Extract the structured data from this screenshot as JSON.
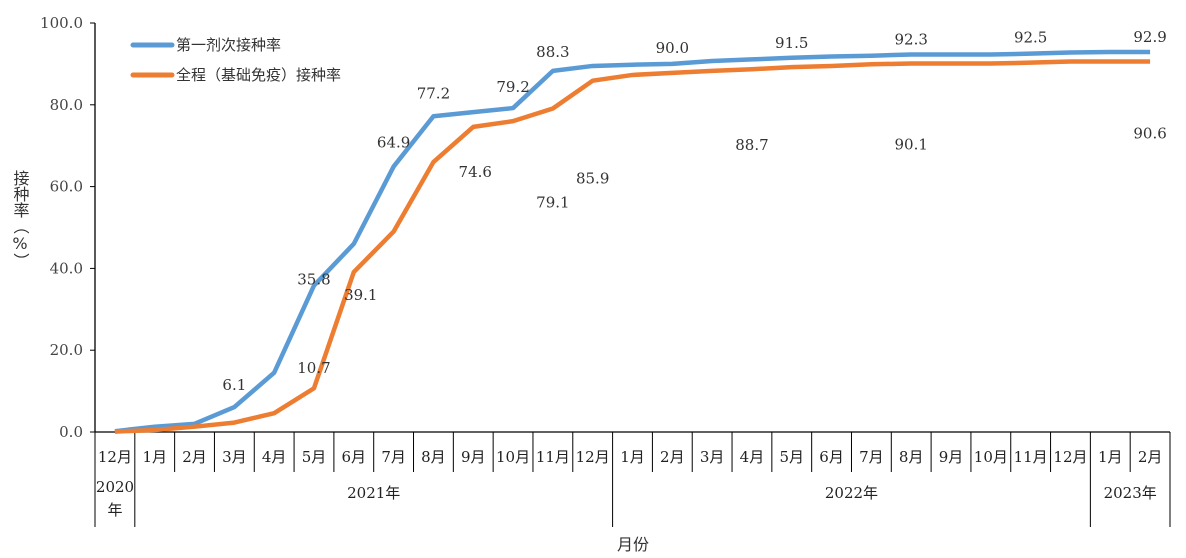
{
  "chart_data": {
    "type": "line",
    "title": "",
    "xlabel": "月份",
    "ylabel": "接种率（%）",
    "ylim": [
      0,
      100
    ],
    "yticks": [
      "0.0",
      "20.0",
      "40.0",
      "60.0",
      "80.0",
      "100.0"
    ],
    "grid": false,
    "legend_position": "top-left",
    "categories": [
      "12月",
      "1月",
      "2月",
      "3月",
      "4月",
      "5月",
      "6月",
      "7月",
      "8月",
      "9月",
      "10月",
      "11月",
      "12月",
      "1月",
      "2月",
      "3月",
      "4月",
      "5月",
      "6月",
      "7月",
      "8月",
      "9月",
      "10月",
      "11月",
      "12月",
      "1月",
      "2月"
    ],
    "year_groups": [
      {
        "label": "2020年",
        "span": 1
      },
      {
        "label": "2021年",
        "span": 12
      },
      {
        "label": "2022年",
        "span": 12
      },
      {
        "label": "2023年",
        "span": 2
      }
    ],
    "series": [
      {
        "name": "第一剂次接种率",
        "color": "#5B9BD5",
        "values": [
          0.2,
          1.3,
          2.0,
          6.1,
          14.5,
          35.8,
          46.0,
          64.9,
          77.2,
          78.2,
          79.2,
          88.3,
          89.5,
          89.8,
          90.0,
          90.7,
          91.1,
          91.5,
          91.8,
          92.0,
          92.3,
          92.3,
          92.3,
          92.5,
          92.8,
          92.9,
          92.9
        ],
        "labeled": [
          3,
          5,
          7,
          8,
          10,
          11,
          14,
          17,
          20,
          23,
          26
        ]
      },
      {
        "name": "全程（基础免疫）接种率",
        "color": "#ED7D31",
        "values": [
          0.1,
          0.5,
          1.3,
          2.3,
          4.6,
          10.7,
          39.1,
          49.0,
          66.0,
          74.6,
          76.0,
          79.1,
          85.9,
          87.3,
          87.8,
          88.3,
          88.7,
          89.2,
          89.5,
          89.9,
          90.1,
          90.1,
          90.1,
          90.3,
          90.6,
          90.6,
          90.6
        ],
        "labeled": [
          5,
          6,
          9,
          11,
          12,
          16,
          20,
          26
        ]
      }
    ]
  }
}
